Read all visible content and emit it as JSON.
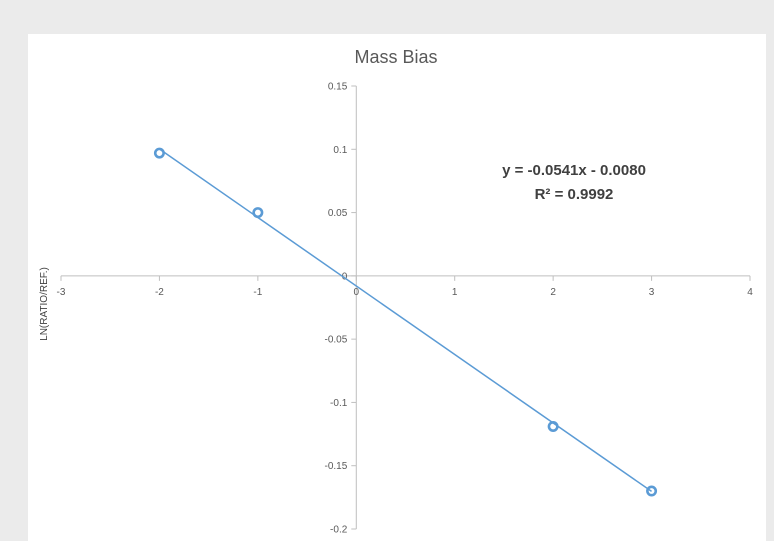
{
  "chart_data": {
    "type": "scatter",
    "title": "Mass Bias",
    "xlabel": "",
    "ylabel": "LN(RATIO/REF.)",
    "xlim": [
      -3,
      4
    ],
    "ylim": [
      -0.2,
      0.15
    ],
    "x_ticks": [
      "-3",
      "-2",
      "-1",
      "0",
      "1",
      "2",
      "3",
      "4"
    ],
    "y_ticks": [
      "0.15",
      "0.1",
      "0.05",
      "0",
      "-0.05",
      "-0.1",
      "-0.15",
      "-0.2"
    ],
    "grid": false,
    "legend": "none",
    "series": [
      {
        "x": [
          -2,
          -1,
          2,
          3
        ],
        "y": [
          0.097,
          0.05,
          -0.119,
          -0.17
        ],
        "marker": "circle-open",
        "color": "#5b9bd5"
      }
    ],
    "trendline": {
      "type": "linear",
      "slope": -0.0541,
      "intercept": -0.008,
      "x_range": [
        -2,
        3
      ],
      "color": "#5b9bd5",
      "equation": "y = -0.0541x - 0.0080",
      "r_squared": "R² = 0.9992"
    }
  }
}
